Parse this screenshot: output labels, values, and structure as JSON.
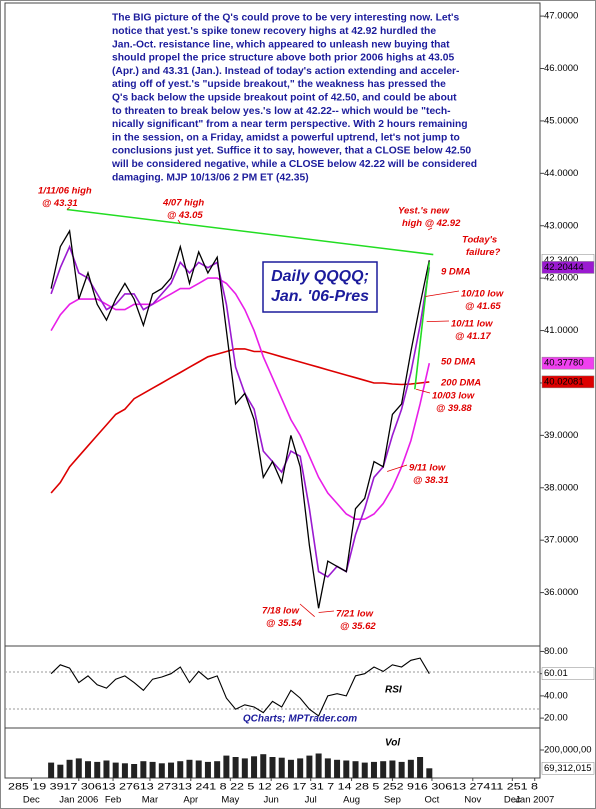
{
  "chart_data": [
    {
      "type": "line",
      "text": [
        "The BIG picture of the Q's could prove to be very interesting now. Let's",
        "notice that yest.'s spike tonew recovery highs at 42.92 hurdled the",
        "Jan.-Oct. resistance line, which appeared to unleash new buying that",
        "should propel the price structure above both prior 2006 highs at 43.05",
        "(Apr.) and 43.31 (Jan.). Instead of today's action extending and acceler-",
        "ating off of yest.'s \"upside breakout,\" the weakness has pressed the",
        "Q's back below the upside breakout point of 42.50, and could be about",
        "to threaten to break below yes.'s low at 42.22-- which would be \"tech-",
        "nically significant\" from a near term perspective. With 2 hours remaining",
        "in the session, on a Friday, amidst a powerful uptrend, let's not jump to",
        "conclusions just yet. Suffice it to say, however, that a CLOSE below 42.50",
        "will be considered negative, while a CLOSE below 42.22 will be considered",
        "damaging.  MJP 10/13/06 2 PM ET (42.35)"
      ],
      "box_title": [
        "Daily QQQQ;",
        "Jan. '06-Pres"
      ],
      "xlim": [
        "2005-11-25",
        "2007-01-05"
      ],
      "ylim": [
        35,
        47.25
      ],
      "yticks": [
        {
          "value": 36,
          "label": "36.0000"
        },
        {
          "value": 37,
          "label": "37.0000"
        },
        {
          "value": 38,
          "label": "38.0000"
        },
        {
          "value": 39,
          "label": "39.0000"
        },
        {
          "value": 40,
          "label": "40.0000"
        },
        {
          "value": 41,
          "label": "41.0000"
        },
        {
          "value": 42,
          "label": "42.0000"
        },
        {
          "value": 43,
          "label": "43.0000"
        },
        {
          "value": 44,
          "label": "44.0000"
        },
        {
          "value": 45,
          "label": "45.0000"
        },
        {
          "value": 46,
          "label": "46.0000"
        },
        {
          "value": 47,
          "label": "47.0000"
        }
      ],
      "x": [
        "2005-12-30",
        "2006-01-06",
        "2006-01-13",
        "2006-01-20",
        "2006-01-27",
        "2006-02-03",
        "2006-02-10",
        "2006-02-17",
        "2006-02-24",
        "2006-03-03",
        "2006-03-10",
        "2006-03-17",
        "2006-03-24",
        "2006-03-31",
        "2006-04-07",
        "2006-04-14",
        "2006-04-21",
        "2006-04-28",
        "2006-05-05",
        "2006-05-12",
        "2006-05-19",
        "2006-05-26",
        "2006-06-02",
        "2006-06-09",
        "2006-06-16",
        "2006-06-23",
        "2006-06-30",
        "2006-07-07",
        "2006-07-14",
        "2006-07-21",
        "2006-07-28",
        "2006-08-04",
        "2006-08-11",
        "2006-08-18",
        "2006-08-25",
        "2006-09-01",
        "2006-09-08",
        "2006-09-15",
        "2006-09-22",
        "2006-09-29",
        "2006-10-06",
        "2006-10-13"
      ],
      "series": [
        {
          "color": "#000000",
          "label_bg": "#ffffff",
          "label_fg": "#000000",
          "values": [
            41.8,
            42.6,
            42.9,
            41.6,
            42.1,
            41.5,
            41.2,
            41.6,
            41.9,
            41.6,
            41.1,
            41.7,
            41.8,
            42.0,
            42.6,
            41.9,
            42.5,
            42.1,
            42.4,
            41.0,
            39.6,
            39.8,
            39.3,
            38.2,
            38.5,
            38.1,
            39.0,
            38.4,
            36.9,
            35.7,
            36.6,
            36.5,
            36.4,
            37.6,
            37.8,
            38.5,
            38.4,
            39.4,
            39.6,
            40.6,
            41.5,
            42.34
          ],
          "value_labels": [
            null,
            null,
            null,
            null,
            null,
            null,
            null,
            null,
            null,
            null,
            null,
            null,
            null,
            null,
            null,
            null,
            null,
            null,
            null,
            null,
            null,
            null,
            null,
            null,
            null,
            null,
            null,
            null,
            null,
            null,
            null,
            null,
            null,
            null,
            null,
            null,
            null,
            null,
            null,
            null,
            null,
            "42.3400"
          ]
        },
        {
          "name": "9 DMA",
          "color": "#9a1ad0",
          "label_bg": "#9a1ad0",
          "label_fg": "#ffffff",
          "values": [
            41.7,
            42.2,
            42.6,
            42.1,
            42.0,
            41.7,
            41.4,
            41.5,
            41.7,
            41.7,
            41.4,
            41.5,
            41.7,
            41.9,
            42.3,
            42.1,
            42.3,
            42.2,
            42.3,
            41.5,
            40.3,
            39.8,
            39.5,
            38.7,
            38.5,
            38.3,
            38.7,
            38.6,
            37.6,
            36.4,
            36.3,
            36.5,
            36.4,
            37.1,
            37.6,
            38.2,
            38.4,
            39.0,
            39.5,
            40.2,
            41.1,
            42.20444
          ],
          "value_labels": [
            null,
            null,
            null,
            null,
            null,
            null,
            null,
            null,
            null,
            null,
            null,
            null,
            null,
            null,
            null,
            null,
            null,
            null,
            null,
            null,
            null,
            null,
            null,
            null,
            null,
            null,
            null,
            null,
            null,
            null,
            null,
            null,
            null,
            null,
            null,
            null,
            null,
            null,
            null,
            null,
            null,
            "42.20444"
          ]
        },
        {
          "name": "50 DMA",
          "color": "#e81ee8",
          "label_bg": "#f040f0",
          "label_fg": "#000000",
          "values": [
            41.0,
            41.3,
            41.5,
            41.6,
            41.6,
            41.6,
            41.5,
            41.4,
            41.4,
            41.5,
            41.5,
            41.5,
            41.6,
            41.7,
            41.8,
            41.8,
            41.9,
            42.0,
            42.0,
            41.9,
            41.7,
            41.4,
            41.0,
            40.5,
            40.1,
            39.7,
            39.3,
            39.0,
            38.6,
            38.2,
            37.9,
            37.7,
            37.5,
            37.4,
            37.4,
            37.5,
            37.7,
            38.0,
            38.4,
            38.9,
            39.6,
            40.3778
          ],
          "value_labels": [
            null,
            null,
            null,
            null,
            null,
            null,
            null,
            null,
            null,
            null,
            null,
            null,
            null,
            null,
            null,
            null,
            null,
            null,
            null,
            null,
            null,
            null,
            null,
            null,
            null,
            null,
            null,
            null,
            null,
            null,
            null,
            null,
            null,
            null,
            null,
            null,
            null,
            null,
            null,
            null,
            null,
            "40.37780"
          ]
        },
        {
          "name": "200 DMA",
          "color": "#dd0000",
          "label_bg": "#dd0000",
          "label_fg": "#ffffff",
          "values": [
            37.9,
            38.1,
            38.4,
            38.6,
            38.8,
            39.0,
            39.2,
            39.4,
            39.5,
            39.7,
            39.8,
            39.9,
            40.0,
            40.1,
            40.2,
            40.3,
            40.4,
            40.5,
            40.55,
            40.6,
            40.65,
            40.65,
            40.6,
            40.6,
            40.55,
            40.5,
            40.45,
            40.4,
            40.35,
            40.3,
            40.25,
            40.2,
            40.15,
            40.1,
            40.05,
            40.0,
            40.0,
            39.98,
            39.97,
            39.98,
            40.0,
            40.02081
          ],
          "value_labels": [
            null,
            null,
            null,
            null,
            null,
            null,
            null,
            null,
            null,
            null,
            null,
            null,
            null,
            null,
            null,
            null,
            null,
            null,
            null,
            null,
            null,
            null,
            null,
            null,
            null,
            null,
            null,
            null,
            null,
            null,
            null,
            null,
            null,
            null,
            null,
            null,
            null,
            null,
            null,
            null,
            null,
            "40.02081"
          ]
        }
      ],
      "trendlines": [
        {
          "color": "#22dd22",
          "x": [
            "2006-01-11",
            "2006-10-16"
          ],
          "values": [
            43.31,
            42.45
          ]
        },
        {
          "color": "#22dd22",
          "x": [
            "2006-10-02",
            "2006-10-13"
          ],
          "values": [
            39.88,
            42.3
          ]
        }
      ],
      "annotation_color": "#e00000",
      "annotations": [
        {
          "lines": [
            "1/11/06 high",
            "@ 43.31"
          ],
          "x": "2006-01-11",
          "value": 43.31
        },
        {
          "lines": [
            "4/07 high",
            "@ 43.05"
          ],
          "x": "2006-04-07",
          "value": 43.05
        },
        {
          "lines": [
            "Yest.'s new",
            "high @ 42.92"
          ],
          "x": "2006-10-12",
          "value": 42.92
        },
        {
          "lines": [
            "Today's",
            "failure?"
          ]
        },
        {
          "lines": [
            "10/10 low",
            "@ 41.65"
          ],
          "x": "2006-10-10",
          "value": 41.65
        },
        {
          "lines": [
            "10/11 low",
            "@ 41.17"
          ],
          "x": "2006-10-11",
          "value": 41.17
        },
        {
          "lines": [
            "10/03 low",
            "@ 39.88"
          ],
          "x": "2006-10-03",
          "value": 39.88
        },
        {
          "lines": [
            "9/11 low",
            "@ 38.31"
          ],
          "x": "2006-09-11",
          "value": 38.31
        },
        {
          "lines": [
            "7/18 low",
            "@ 35.54"
          ],
          "x": "2006-07-18",
          "value": 35.54
        },
        {
          "lines": [
            "7/21 low",
            "@ 35.62"
          ],
          "x": "2006-07-21",
          "value": 35.62
        }
      ]
    },
    {
      "type": "line",
      "label": "RSI",
      "credit": "QCharts; MPTrader.com",
      "color": "#000000",
      "ylim": [
        12,
        84
      ],
      "yticks": [
        {
          "value": 20,
          "label": "20.00"
        },
        {
          "value": 40,
          "label": "40.00"
        },
        {
          "value": 60,
          "label": "60.00"
        },
        {
          "value": 80,
          "label": "80.00"
        }
      ],
      "values": [
        60,
        68,
        65,
        52,
        58,
        50,
        47,
        55,
        58,
        52,
        45,
        55,
        57,
        60,
        66,
        52,
        62,
        55,
        58,
        38,
        28,
        32,
        30,
        25,
        35,
        30,
        45,
        38,
        28,
        22,
        40,
        42,
        40,
        58,
        60,
        66,
        62,
        68,
        66,
        72,
        74,
        60.01
      ],
      "value_labels": [
        null,
        null,
        null,
        null,
        null,
        null,
        null,
        null,
        null,
        null,
        null,
        null,
        null,
        null,
        null,
        null,
        null,
        null,
        null,
        null,
        null,
        null,
        null,
        null,
        null,
        null,
        null,
        null,
        null,
        null,
        null,
        null,
        null,
        null,
        null,
        null,
        null,
        null,
        null,
        null,
        null,
        "60.01"
      ]
    },
    {
      "type": "bar",
      "label": "Vol",
      "color": "#222222",
      "ylim": [
        0,
        350000000
      ],
      "yticks": [
        {
          "value": 200000000,
          "label": "200,000,00"
        }
      ],
      "values": [
        110000000,
        95000000,
        130000000,
        140000000,
        120000000,
        115000000,
        125000000,
        110000000,
        105000000,
        100000000,
        120000000,
        115000000,
        105000000,
        110000000,
        120000000,
        130000000,
        125000000,
        115000000,
        120000000,
        160000000,
        150000000,
        140000000,
        155000000,
        170000000,
        150000000,
        145000000,
        130000000,
        140000000,
        160000000,
        175000000,
        140000000,
        130000000,
        125000000,
        120000000,
        110000000,
        115000000,
        120000000,
        125000000,
        115000000,
        130000000,
        150000000,
        69312015
      ],
      "value_labels": [
        null,
        null,
        null,
        null,
        null,
        null,
        null,
        null,
        null,
        null,
        null,
        null,
        null,
        null,
        null,
        null,
        null,
        null,
        null,
        null,
        null,
        null,
        null,
        null,
        null,
        null,
        null,
        null,
        null,
        null,
        null,
        null,
        null,
        null,
        null,
        null,
        null,
        null,
        null,
        null,
        null,
        "69,312,015"
      ],
      "x_sublabels": "285 19 3917 30613 27613 27313 241 8 22 5 12 26 17 31 7 14 28 5 252 916 30613 27411 251 8",
      "xticks": [
        {
          "value": "2005-12-15",
          "label": "Dec"
        },
        {
          "value": "2006-01-20",
          "label": "Jan 2006"
        },
        {
          "value": "2006-02-15",
          "label": "Feb"
        },
        {
          "value": "2006-03-15",
          "label": "Mar"
        },
        {
          "value": "2006-04-15",
          "label": "Apr"
        },
        {
          "value": "2006-05-15",
          "label": "May"
        },
        {
          "value": "2006-06-15",
          "label": "Jun"
        },
        {
          "value": "2006-07-15",
          "label": "Jul"
        },
        {
          "value": "2006-08-15",
          "label": "Aug"
        },
        {
          "value": "2006-09-15",
          "label": "Sep"
        },
        {
          "value": "2006-10-15",
          "label": "Oct"
        },
        {
          "value": "2006-11-15",
          "label": "Nov"
        },
        {
          "value": "2006-12-15",
          "label": "Dec"
        },
        {
          "value": "2007-01-01",
          "label": "Jan 2007"
        }
      ]
    }
  ]
}
